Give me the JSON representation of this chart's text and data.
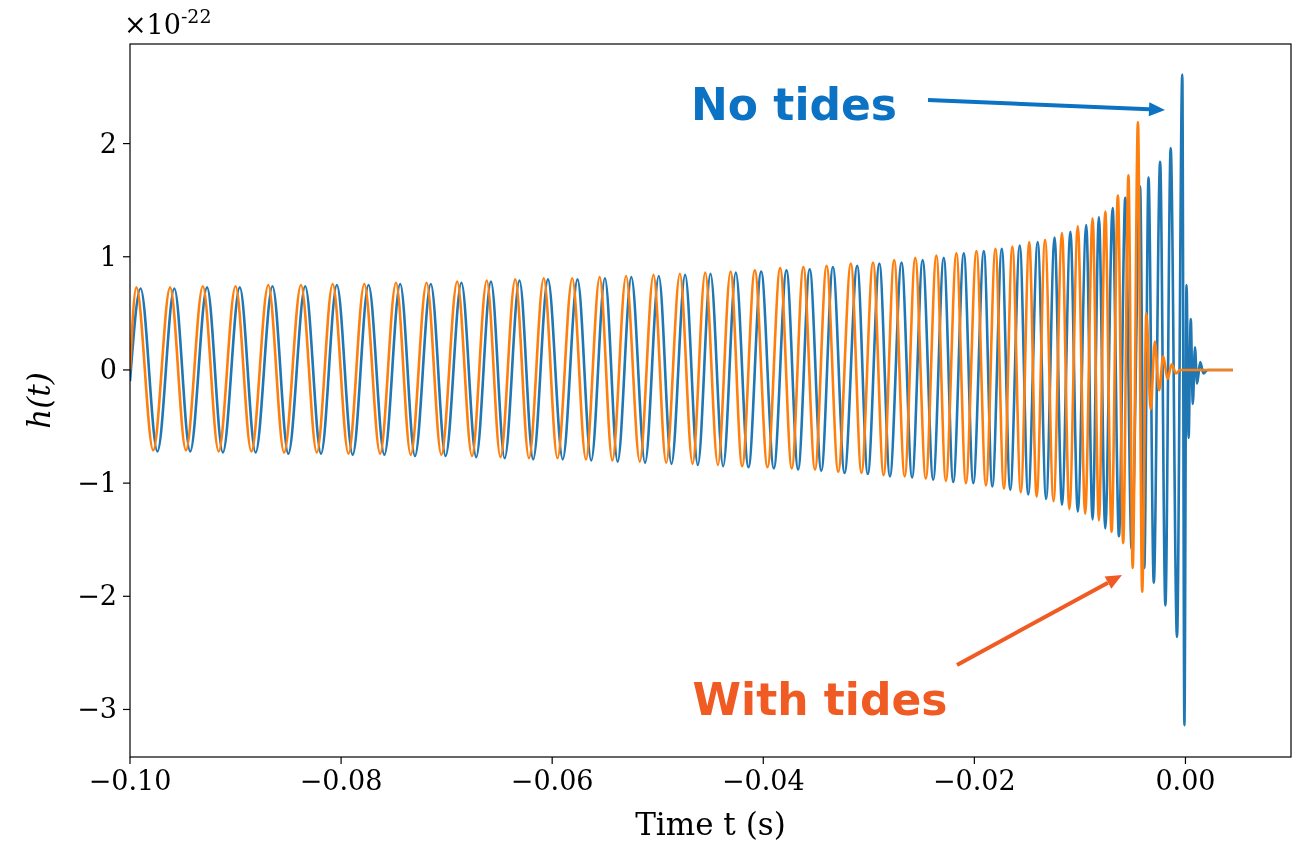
{
  "chart_data": {
    "type": "line",
    "xlabel": "Time t (s)",
    "ylabel": "h(t)",
    "xlim": [
      -0.1,
      0.01
    ],
    "ylim": [
      -3.42,
      2.88
    ],
    "xticks": [
      {
        "value": -0.1,
        "label": "−0.10"
      },
      {
        "value": -0.08,
        "label": "−0.08"
      },
      {
        "value": -0.06,
        "label": "−0.06"
      },
      {
        "value": -0.04,
        "label": "−0.04"
      },
      {
        "value": -0.02,
        "label": "−0.02"
      },
      {
        "value": 0,
        "label": "0.00"
      }
    ],
    "yticks": [
      {
        "value": -3,
        "label": "−3"
      },
      {
        "value": -2,
        "label": "−2"
      },
      {
        "value": -1,
        "label": "−1"
      },
      0,
      1,
      2
    ],
    "annotations": [
      "×10$^{-22}$",
      "No tides",
      "With tides"
    ],
    "series": [
      {
        "color": "#1f77b4",
        "x": [
          -0.1,
          -0.099,
          -0.0974,
          -0.0958,
          -0.0943,
          -0.0927,
          -0.0912,
          -0.0896,
          -0.0881,
          -0.0865,
          -0.085,
          -0.0834,
          -0.0819,
          -0.0804,
          -0.0789,
          -0.0774,
          -0.0759,
          -0.0744,
          -0.073,
          -0.0715,
          -0.0701,
          -0.0686,
          -0.0672,
          -0.0658,
          -0.0645,
          -0.0631,
          -0.0618,
          -0.0604,
          -0.059,
          -0.0576,
          -0.0563,
          -0.055,
          -0.0538,
          -0.0525,
          -0.0512,
          -0.0499,
          -0.0487,
          -0.0474,
          -0.0462,
          -0.045,
          -0.0438,
          -0.0426,
          -0.0414,
          -0.0402,
          -0.039,
          -0.0378,
          -0.0367,
          -0.0356,
          -0.0345,
          -0.0334,
          -0.0323,
          -0.0311,
          -0.0301,
          -0.029,
          -0.028,
          -0.0269,
          -0.0259,
          -0.0249,
          -0.0239,
          -0.0229,
          -0.022,
          -0.021,
          -0.0201,
          -0.0191,
          -0.0183,
          -0.0174,
          -0.0166,
          -0.0157,
          -0.0149,
          -0.014,
          -0.0132,
          -0.0124,
          -0.0117,
          -0.0109,
          -0.0102,
          -0.0094,
          -0.0088,
          -0.0082,
          -0.0076,
          -0.0069,
          -0.0063,
          -0.0057,
          -0.0051,
          -0.0043,
          -0.0039,
          -0.0035,
          -0.003,
          -0.0024,
          -0.0019,
          -0.0014,
          -0.0008,
          -0.0003,
          -0.0001,
          0.0001,
          0.0003,
          0.0005,
          0.0007,
          0.0009,
          0.0011,
          0.0014,
          0.0017,
          0.0021,
          0.0045
        ],
        "values": [
          -0.1,
          0.72,
          -0.72,
          0.72,
          -0.72,
          0.73,
          -0.73,
          0.73,
          -0.73,
          0.74,
          -0.74,
          0.74,
          -0.74,
          0.75,
          -0.75,
          0.75,
          -0.75,
          0.76,
          -0.76,
          0.76,
          -0.76,
          0.77,
          -0.77,
          0.78,
          -0.78,
          0.79,
          -0.79,
          0.8,
          -0.79,
          0.8,
          -0.8,
          0.81,
          -0.81,
          0.82,
          -0.82,
          0.83,
          -0.83,
          0.84,
          -0.84,
          0.85,
          -0.85,
          0.86,
          -0.86,
          0.87,
          -0.87,
          0.88,
          -0.88,
          0.89,
          -0.89,
          0.91,
          -0.91,
          0.92,
          -0.92,
          0.94,
          -0.94,
          0.95,
          -0.95,
          0.97,
          -0.97,
          0.99,
          -0.99,
          1.03,
          -1.0,
          1.05,
          -1.03,
          1.07,
          -1.06,
          1.1,
          -1.1,
          1.13,
          -1.14,
          1.17,
          -1.19,
          1.22,
          -1.25,
          1.28,
          -1.32,
          1.35,
          -1.4,
          1.43,
          -1.47,
          1.52,
          -1.58,
          1.62,
          -1.75,
          1.7,
          -1.88,
          1.84,
          -2.08,
          1.96,
          -2.36,
          2.61,
          -3.14,
          0.75,
          -0.6,
          0.45,
          -0.3,
          0.2,
          -0.12,
          0.07,
          -0.03,
          0,
          0
        ]
      },
      {
        "color": "#ff7f0e",
        "x": [
          -0.1,
          -0.0994,
          -0.0978,
          -0.0962,
          -0.0947,
          -0.0931,
          -0.0916,
          -0.09,
          -0.0885,
          -0.0869,
          -0.0854,
          -0.0838,
          -0.0823,
          -0.0808,
          -0.0793,
          -0.0778,
          -0.0763,
          -0.0748,
          -0.0734,
          -0.0719,
          -0.0705,
          -0.069,
          -0.0676,
          -0.0662,
          -0.0649,
          -0.0635,
          -0.0622,
          -0.0608,
          -0.0595,
          -0.0581,
          -0.0568,
          -0.0555,
          -0.0543,
          -0.053,
          -0.0517,
          -0.0504,
          -0.0492,
          -0.0479,
          -0.0467,
          -0.0455,
          -0.0443,
          -0.0431,
          -0.042,
          -0.0408,
          -0.0396,
          -0.0384,
          -0.0373,
          -0.0362,
          -0.0351,
          -0.034,
          -0.0329,
          -0.0317,
          -0.0307,
          -0.0296,
          -0.0286,
          -0.0276,
          -0.0266,
          -0.0256,
          -0.0246,
          -0.0236,
          -0.0227,
          -0.0217,
          -0.0208,
          -0.0198,
          -0.0189,
          -0.018,
          -0.0172,
          -0.0164,
          -0.0156,
          -0.0148,
          -0.0141,
          -0.0133,
          -0.0125,
          -0.0117,
          -0.011,
          -0.0102,
          -0.0095,
          -0.0088,
          -0.0082,
          -0.0076,
          -0.007,
          -0.0064,
          -0.0059,
          -0.0054,
          -0.005,
          -0.0045,
          -0.0041,
          -0.0037,
          -0.0033,
          -0.0029,
          -0.0025,
          -0.0021,
          -0.0017,
          -0.0013,
          -0.0009,
          -0.0005,
          0.0045
        ],
        "values": [
          0,
          0.73,
          -0.71,
          0.73,
          -0.71,
          0.74,
          -0.72,
          0.74,
          -0.72,
          0.75,
          -0.73,
          0.75,
          -0.73,
          0.76,
          -0.74,
          0.76,
          -0.74,
          0.77,
          -0.75,
          0.77,
          -0.75,
          0.78,
          -0.76,
          0.79,
          -0.77,
          0.8,
          -0.78,
          0.81,
          -0.78,
          0.81,
          -0.79,
          0.82,
          -0.8,
          0.83,
          -0.81,
          0.84,
          -0.82,
          0.85,
          -0.83,
          0.86,
          -0.84,
          0.87,
          -0.85,
          0.88,
          -0.86,
          0.9,
          -0.87,
          0.91,
          -0.88,
          0.92,
          -0.9,
          0.94,
          -0.91,
          0.95,
          -0.93,
          0.97,
          -0.94,
          0.99,
          -0.96,
          1.01,
          -0.98,
          1.03,
          -1.0,
          1.05,
          -1.02,
          1.07,
          -1.05,
          1.09,
          -1.08,
          1.13,
          -1.12,
          1.15,
          -1.16,
          1.21,
          -1.23,
          1.27,
          -1.27,
          1.34,
          -1.33,
          1.4,
          -1.43,
          1.54,
          -1.53,
          1.72,
          -1.75,
          2.19,
          -1.96,
          0.5,
          -0.35,
          0.25,
          -0.18,
          0.12,
          -0.08,
          0.05,
          -0.03,
          0,
          0
        ]
      }
    ]
  }
}
